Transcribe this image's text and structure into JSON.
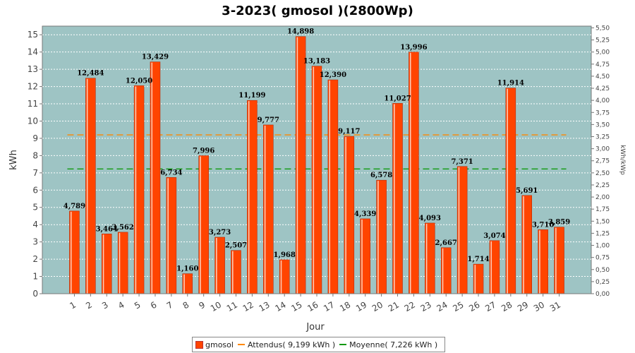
{
  "chart_data": {
    "type": "bar",
    "title": "3-2023( gmosol )(2800Wp)",
    "xlabel": "Jour",
    "ylabel": "kWh",
    "y2label": "kWh/kWp",
    "ylim": [
      0,
      15.5
    ],
    "y2lim": [
      0,
      5.536
    ],
    "yticks": [
      "0",
      "1",
      "2",
      "3",
      "4",
      "5",
      "6",
      "7",
      "8",
      "9",
      "10",
      "11",
      "12",
      "13",
      "14",
      "15"
    ],
    "y2ticks": [
      "0,00",
      "0,25",
      "0,50",
      "0,75",
      "1,00",
      "1,25",
      "1,50",
      "1,75",
      "2,00",
      "2,25",
      "2,50",
      "2,75",
      "3,00",
      "3,25",
      "3,50",
      "3,75",
      "4,00",
      "4,25",
      "4,50",
      "4,75",
      "5,00",
      "5,25",
      "5,50"
    ],
    "categories": [
      "1",
      "2",
      "3",
      "4",
      "5",
      "6",
      "7",
      "8",
      "9",
      "10",
      "11",
      "12",
      "13",
      "14",
      "15",
      "16",
      "17",
      "18",
      "19",
      "20",
      "21",
      "22",
      "23",
      "24",
      "25",
      "26",
      "27",
      "28",
      "29",
      "30",
      "31"
    ],
    "values": [
      4.789,
      12.484,
      3.464,
      3.562,
      12.05,
      13.429,
      6.734,
      1.16,
      7.996,
      3.273,
      2.507,
      11.199,
      9.777,
      1.968,
      14.898,
      13.183,
      12.39,
      9.117,
      4.339,
      6.578,
      11.027,
      13.996,
      4.093,
      2.667,
      7.371,
      1.714,
      3.074,
      11.914,
      5.691,
      3.71,
      3.859
    ],
    "value_labels": [
      "4,789",
      "12,484",
      "3,464",
      "3,562",
      "12,050",
      "13,429",
      "6,734",
      "1,160",
      "7,996",
      "3,273",
      "2,507",
      "11,199",
      "9,777",
      "1,968",
      "14,898",
      "13,183",
      "12,390",
      "9,117",
      "4,339",
      "6,578",
      "11,027",
      "13,996",
      "4,093",
      "2,667",
      "7,371",
      "1,714",
      "3,074",
      "11,914",
      "5,691",
      "3,710",
      "3,859"
    ],
    "reference_lines": [
      {
        "name": "Attendus",
        "value": 9.199,
        "color": "#ff8800"
      },
      {
        "name": "Moyenne",
        "value": 7.226,
        "color": "#119911"
      }
    ],
    "legend": [
      {
        "text": "gmosol",
        "color": "#ff4400"
      },
      {
        "text": "Attendus( 9,199 kWh )",
        "color": "#ff8800"
      },
      {
        "text": "Moyenne( 7,226 kWh )",
        "color": "#119911"
      }
    ],
    "legend_position": "bottom",
    "grid": true,
    "colors": {
      "bar": "#ff4400",
      "plot_bg": "#9ec4c4",
      "grid": "#ffffff"
    }
  }
}
